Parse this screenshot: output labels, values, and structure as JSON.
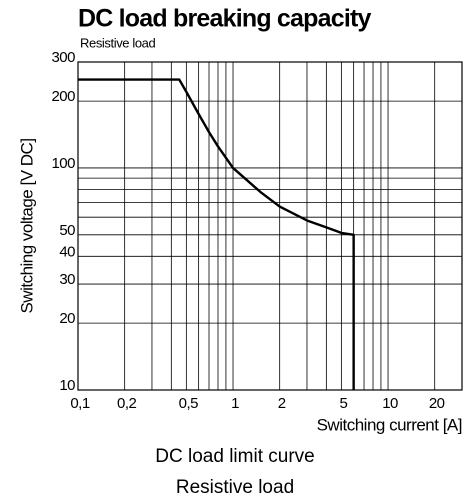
{
  "chart_data": {
    "type": "line",
    "title": "DC load breaking capacity",
    "subtitle": "Resistive load",
    "xlabel": "Switching current [A]",
    "ylabel": "Switching voltage [V DC]",
    "caption": [
      "DC load limit curve",
      "Resistive load"
    ],
    "log_x": true,
    "log_y": true,
    "grid": true,
    "xlim": [
      0.1,
      30
    ],
    "ylim": [
      10,
      300
    ],
    "xticks": [
      {
        "value": 0.1,
        "label": "0,1"
      },
      {
        "value": 0.2,
        "label": "0,2"
      },
      {
        "value": 0.5,
        "label": "0,5"
      },
      1,
      2,
      5,
      10,
      20
    ],
    "yticks": [
      10,
      20,
      30,
      40,
      50,
      100,
      200,
      300
    ],
    "x_minor_ticks": [
      0.3,
      0.4,
      0.6,
      0.7,
      0.8,
      0.9,
      3,
      4,
      6,
      7,
      8,
      9,
      30
    ],
    "y_minor_ticks": [
      60,
      70,
      80,
      90
    ],
    "x": [
      0.1,
      0.45,
      0.5,
      0.6,
      0.7,
      0.8,
      1,
      1.5,
      2,
      3,
      4,
      5,
      6,
      6
    ],
    "series": [
      {
        "name": null,
        "color": "#000000",
        "values": [
          250,
          250,
          220,
          175,
          145,
          125,
          100,
          78,
          67,
          58,
          54,
          51,
          50,
          10
        ]
      }
    ]
  }
}
